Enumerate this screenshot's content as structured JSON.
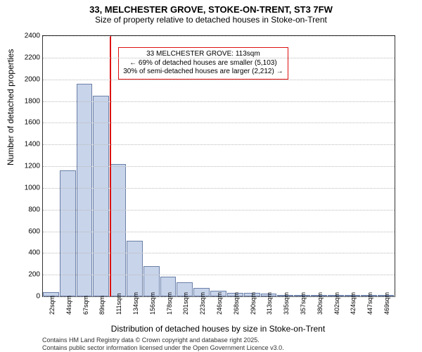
{
  "title": "33, MELCHESTER GROVE, STOKE-ON-TRENT, ST3 7FW",
  "subtitle": "Size of property relative to detached houses in Stoke-on-Trent",
  "ylabel": "Number of detached properties",
  "xlabel": "Distribution of detached houses by size in Stoke-on-Trent",
  "chart": {
    "type": "histogram",
    "ylim": [
      0,
      2400
    ],
    "ytick_step": 200,
    "bar_fill": "#c8d4ea",
    "bar_stroke": "#6a7fa8",
    "grid_color": "#bbbbbb",
    "marker_color": "#d11",
    "background": "#ffffff",
    "categories": [
      "22sqm",
      "44sqm",
      "67sqm",
      "89sqm",
      "111sqm",
      "134sqm",
      "156sqm",
      "178sqm",
      "201sqm",
      "223sqm",
      "246sqm",
      "268sqm",
      "290sqm",
      "313sqm",
      "335sqm",
      "357sqm",
      "380sqm",
      "402sqm",
      "424sqm",
      "447sqm",
      "469sqm"
    ],
    "values": [
      40,
      1160,
      1960,
      1850,
      1220,
      510,
      280,
      180,
      130,
      80,
      55,
      35,
      30,
      25,
      15,
      10,
      10,
      5,
      5,
      5,
      5
    ],
    "marker_index": 4
  },
  "annot": {
    "line1": "33 MELCHESTER GROVE: 113sqm",
    "line2": "← 69% of detached houses are smaller (5,103)",
    "line3": "30% of semi-detached houses are larger (2,212) →"
  },
  "footer": {
    "l1": "Contains HM Land Registry data © Crown copyright and database right 2025.",
    "l2": "Contains public sector information licensed under the Open Government Licence v3.0."
  }
}
